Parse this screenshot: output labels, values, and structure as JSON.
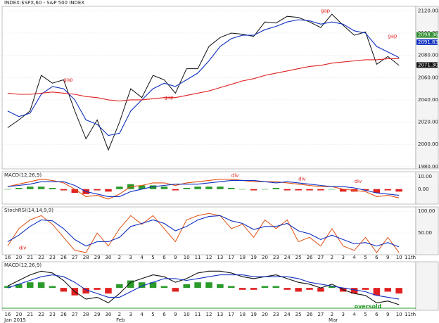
{
  "chart_data": [
    {
      "type": "line",
      "title": "INDEX:$SPX,60 - S&P 500 INDEX",
      "categories": [
        "16",
        "20",
        "21",
        "22",
        "23",
        "26",
        "27",
        "28",
        "29",
        "30",
        "2",
        "3",
        "4",
        "5",
        "6",
        "9",
        "10",
        "11",
        "12",
        "13",
        "17",
        "18",
        "19",
        "20",
        "23",
        "24",
        "25",
        "26",
        "27",
        "2",
        "3",
        "4",
        "5",
        "6",
        "9",
        "10",
        "11th"
      ],
      "month_labels": [
        {
          "label": "Jan 2015",
          "at": 0
        },
        {
          "label": "Feb",
          "at": 10
        },
        {
          "label": "Mar",
          "at": 29
        }
      ],
      "series": [
        {
          "type": "line",
          "color": "#111111",
          "values": [
            2015,
            2022,
            2030,
            2062,
            2055,
            2058,
            2030,
            2005,
            2022,
            1995,
            2020,
            2050,
            2042,
            2062,
            2058,
            2046,
            2068,
            2068,
            2088,
            2096,
            2100,
            2099,
            2097,
            2110,
            2109,
            2115,
            2114,
            2110,
            2105,
            2117,
            2107,
            2098,
            2101,
            2072,
            2079,
            2071,
            null
          ]
        },
        {
          "type": "line",
          "color": "#1030c0",
          "values": [
            2030,
            2025,
            2028,
            2045,
            2052,
            2050,
            2040,
            2022,
            2018,
            2008,
            2010,
            2030,
            2040,
            2050,
            2055,
            2052,
            2058,
            2064,
            2075,
            2088,
            2095,
            2098,
            2098,
            2103,
            2106,
            2110,
            2112,
            2111,
            2108,
            2110,
            2108,
            2102,
            2100,
            2088,
            2083,
            2078,
            null
          ]
        },
        {
          "type": "line",
          "color": "#e02020",
          "values": [
            2046,
            2045,
            2045,
            2046,
            2047,
            2046,
            2045,
            2043,
            2042,
            2040,
            2039,
            2040,
            2040,
            2041,
            2042,
            2042,
            2044,
            2046,
            2048,
            2051,
            2054,
            2057,
            2059,
            2062,
            2064,
            2066,
            2068,
            2070,
            2071,
            2073,
            2074,
            2075,
            2076,
            2076,
            2077,
            2077,
            null
          ]
        }
      ],
      "ylim": [
        1978,
        2124
      ],
      "yticks": [
        {
          "value": 1980,
          "label": "1980.00"
        },
        {
          "value": 2000,
          "label": "2000.00"
        },
        {
          "value": 2020,
          "label": "2020.00"
        },
        {
          "value": 2040,
          "label": "2040.00"
        },
        {
          "value": 2060,
          "label": "2060.00"
        },
        {
          "value": 2080,
          "label": "2080.00"
        },
        {
          "value": 2100,
          "label": "2100.00"
        },
        {
          "value": 2120,
          "label": "2120.00"
        }
      ],
      "right_labels": [
        {
          "value": 2098.36,
          "label": "2098.36",
          "color": "#2a8a2a"
        },
        {
          "value": 2091.83,
          "label": "2091.83",
          "color": "#1030c0"
        },
        {
          "value": 2071.3,
          "label": "2071.30",
          "color": "#111111"
        }
      ],
      "annotations": [
        {
          "text": "gap",
          "at": 5,
          "value": 2058
        },
        {
          "text": "gap",
          "at": 14,
          "value": 2042
        },
        {
          "text": "gap",
          "at": 28,
          "value": 2120
        },
        {
          "text": "gap",
          "at": 34,
          "value": 2097
        }
      ]
    },
    {
      "type": "line",
      "title": "MACD(12,26,9)",
      "series": [
        {
          "type": "bar",
          "color": "#2a9a2a",
          "negative_color": "#e02020",
          "values": [
            0,
            1,
            2,
            2,
            1,
            -1,
            -3,
            -4,
            -1,
            -2,
            2,
            4,
            3,
            3,
            2,
            -1,
            1,
            2,
            2,
            2,
            1,
            0,
            -1,
            0,
            1,
            -1,
            -1,
            -1,
            -1,
            0,
            -2,
            -2,
            -1,
            -3,
            -1,
            -2,
            null
          ]
        },
        {
          "type": "line",
          "color": "#e05010",
          "values": [
            2,
            4,
            6,
            8,
            7,
            5,
            0,
            -6,
            -5,
            -8,
            -4,
            2,
            3,
            5,
            5,
            3,
            5,
            6,
            7,
            8,
            8,
            7,
            6,
            6,
            6,
            5,
            4,
            3,
            2,
            2,
            0,
            -1,
            -2,
            -6,
            -5,
            -7,
            null
          ]
        },
        {
          "type": "line",
          "color": "#1030c0",
          "values": [
            2,
            3,
            4,
            6,
            6,
            6,
            3,
            -2,
            -4,
            -6,
            -6,
            -2,
            0,
            2,
            3,
            4,
            4,
            4,
            5,
            6,
            7,
            7,
            7,
            6,
            5,
            6,
            5,
            4,
            3,
            2,
            2,
            1,
            -1,
            -3,
            -4,
            -5,
            null
          ]
        }
      ],
      "ylim": [
        -12,
        14
      ],
      "yticks": [
        {
          "value": 10,
          "label": "10.00"
        },
        {
          "value": 0,
          "label": "0.00"
        }
      ],
      "annotations": [
        {
          "text": "div",
          "at": 20,
          "value": 11
        },
        {
          "text": "div",
          "at": 26,
          "value": 8
        },
        {
          "text": "div",
          "at": 31,
          "value": 6
        }
      ]
    },
    {
      "type": "line",
      "title": "StochRSI(14,14,9,9)",
      "series": [
        {
          "type": "line",
          "color": "#e05010",
          "values": [
            20,
            60,
            80,
            90,
            70,
            40,
            10,
            5,
            50,
            20,
            60,
            90,
            70,
            90,
            60,
            30,
            80,
            90,
            95,
            90,
            60,
            70,
            40,
            80,
            60,
            80,
            30,
            40,
            20,
            60,
            20,
            10,
            40,
            5,
            40,
            5,
            null
          ]
        },
        {
          "type": "line",
          "color": "#1030c0",
          "values": [
            30,
            45,
            65,
            80,
            78,
            60,
            35,
            20,
            30,
            30,
            40,
            65,
            72,
            80,
            72,
            55,
            65,
            80,
            88,
            90,
            78,
            72,
            58,
            65,
            65,
            72,
            55,
            48,
            35,
            45,
            35,
            25,
            28,
            20,
            28,
            18,
            null
          ]
        }
      ],
      "ylim": [
        0,
        110
      ],
      "yticks": [
        {
          "value": 50,
          "label": "50.00"
        },
        {
          "value": 100,
          "label": "100.00"
        }
      ],
      "annotations": [
        {
          "text": "div",
          "at": 1,
          "value": 15
        }
      ]
    },
    {
      "type": "line",
      "title": "MACD(12,26,9)",
      "series": [
        {
          "type": "bar",
          "color": "#2a9a2a",
          "negative_color": "#e02020",
          "values": [
            1,
            2,
            3,
            3,
            1,
            -2,
            -4,
            -3,
            -1,
            -3,
            2,
            4,
            3,
            3,
            1,
            -2,
            2,
            3,
            3,
            2,
            1,
            -1,
            -1,
            1,
            1,
            -1,
            -2,
            -1,
            -2,
            1,
            -2,
            -3,
            -1,
            -4,
            -2,
            -3,
            null
          ]
        },
        {
          "type": "line",
          "color": "#111111",
          "values": [
            1,
            4,
            7,
            9,
            8,
            4,
            -2,
            -6,
            -5,
            -8,
            -3,
            3,
            5,
            7,
            6,
            3,
            5,
            8,
            9,
            9,
            8,
            6,
            5,
            6,
            7,
            5,
            3,
            2,
            0,
            2,
            -1,
            -3,
            -4,
            -8,
            -7,
            -9,
            null
          ]
        },
        {
          "type": "line",
          "color": "#1030c0",
          "values": [
            0,
            2,
            4,
            6,
            7,
            6,
            3,
            -1,
            -3,
            -5,
            -5,
            -2,
            1,
            3,
            5,
            5,
            4,
            5,
            6,
            7,
            7,
            7,
            6,
            6,
            6,
            6,
            5,
            3,
            2,
            1,
            0,
            -1,
            -2,
            -4,
            -5,
            -6,
            null
          ]
        }
      ],
      "ylim": [
        -12,
        14
      ],
      "yticks": [],
      "annotations": [
        {
          "text": "oversold",
          "at": 31,
          "value": -10
        }
      ]
    }
  ]
}
